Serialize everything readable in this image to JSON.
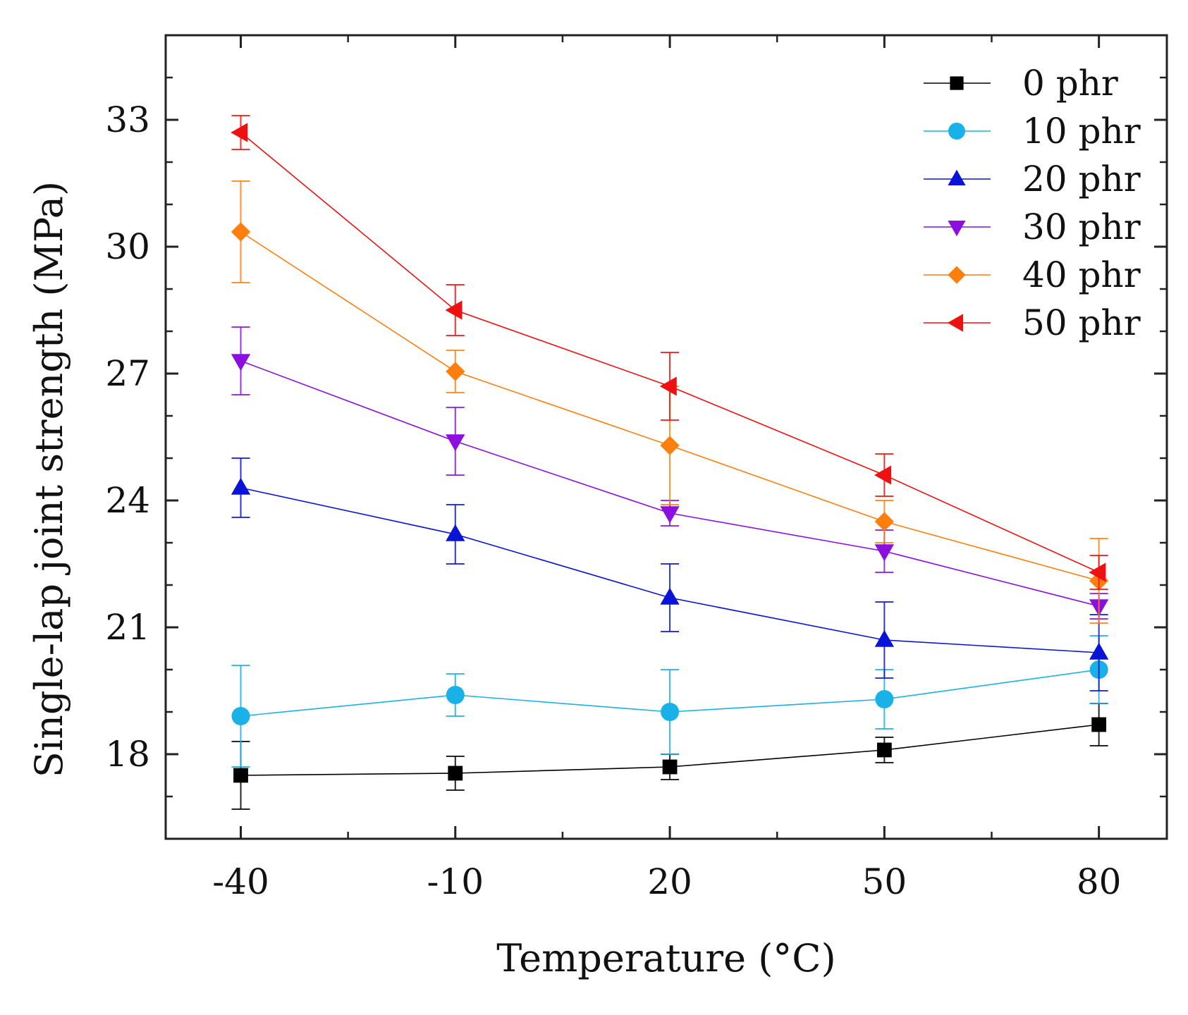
{
  "chart_data": {
    "type": "line",
    "title": "",
    "xlabel": "Temperature (°C)",
    "ylabel": "Single-lap joint strength (MPa)",
    "x": [
      -40,
      -10,
      20,
      50,
      80
    ],
    "x_tick_labels": [
      "-40",
      "-10",
      "20",
      "50",
      "80"
    ],
    "y_ticks": [
      18,
      21,
      24,
      27,
      30,
      33
    ],
    "y_tick_labels": [
      "18",
      "21",
      "24",
      "27",
      "30",
      "33"
    ],
    "xlim": [
      -50.5,
      89.5
    ],
    "ylim": [
      16.0,
      35.0
    ],
    "grid": false,
    "legend_position": "top-right",
    "series": [
      {
        "name": "0 phr",
        "marker": "square",
        "color": "#000000",
        "values": [
          17.5,
          17.55,
          17.7,
          18.1,
          18.7
        ],
        "errors": [
          0.8,
          0.4,
          0.3,
          0.3,
          0.5
        ]
      },
      {
        "name": "10 phr",
        "marker": "circle",
        "color": "#1ab0e8",
        "values": [
          18.9,
          19.4,
          19.0,
          19.3,
          20.0
        ],
        "errors": [
          1.2,
          0.5,
          1.0,
          0.7,
          0.8
        ]
      },
      {
        "name": "20 phr",
        "marker": "triangle-up",
        "color": "#0a14d6",
        "values": [
          24.3,
          23.2,
          21.7,
          20.7,
          20.4
        ],
        "errors": [
          0.7,
          0.7,
          0.8,
          0.9,
          0.9
        ]
      },
      {
        "name": "30 phr",
        "marker": "triangle-down",
        "color": "#8b10e0",
        "values": [
          27.3,
          25.4,
          23.7,
          22.8,
          21.5
        ],
        "errors": [
          0.8,
          0.8,
          0.3,
          0.5,
          0.3
        ]
      },
      {
        "name": "40 phr",
        "marker": "diamond",
        "color": "#ff7f0e",
        "values": [
          30.35,
          27.05,
          25.3,
          23.5,
          22.1
        ],
        "errors": [
          1.2,
          0.5,
          1.4,
          0.5,
          1.0
        ]
      },
      {
        "name": "50 phr",
        "marker": "triangle-left",
        "color": "#ee1111",
        "values": [
          32.7,
          28.5,
          26.7,
          24.6,
          22.3
        ],
        "errors": [
          0.4,
          0.6,
          0.8,
          0.5,
          0.4
        ]
      }
    ]
  }
}
